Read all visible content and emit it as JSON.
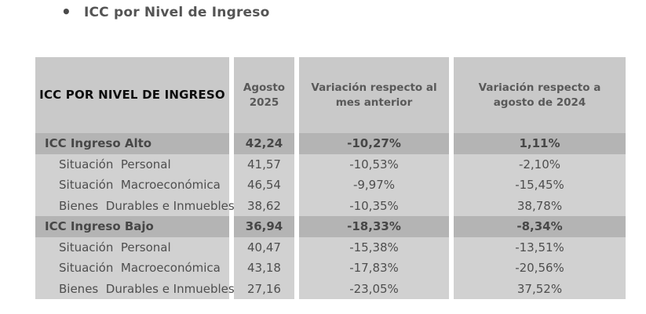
{
  "title": {
    "bullet": "•",
    "text": "ICC por Nivel de Ingreso"
  },
  "table": {
    "headers": [
      {
        "lines": [
          "ICC POR NIVEL DE INGRESO"
        ]
      },
      {
        "lines": [
          "Agosto",
          "2025"
        ]
      },
      {
        "lines": [
          "Variación respecto al",
          "mes anterior"
        ]
      },
      {
        "lines": [
          "Variación respecto a",
          "agosto de 2024"
        ]
      }
    ],
    "rows": [
      {
        "label": "ICC Ingreso Alto",
        "agosto_2025": "42,24",
        "var_mes_anterior": "-10,27%",
        "var_agosto_2024": "1,11%"
      },
      {
        "label": "Situación  Personal",
        "agosto_2025": "41,57",
        "var_mes_anterior": "-10,53%",
        "var_agosto_2024": "-2,10%"
      },
      {
        "label": "Situación  Macroeconómica",
        "agosto_2025": "46,54",
        "var_mes_anterior": "-9,97%",
        "var_agosto_2024": "-15,45%"
      },
      {
        "label": "Bienes  Durables e Inmuebles",
        "agosto_2025": "38,62",
        "var_mes_anterior": "-10,35%",
        "var_agosto_2024": "38,78%"
      },
      {
        "label": "ICC Ingreso Bajo",
        "agosto_2025": "36,94",
        "var_mes_anterior": "-18,33%",
        "var_agosto_2024": "-8,34%"
      },
      {
        "label": "Situación  Personal",
        "agosto_2025": "40,47",
        "var_mes_anterior": "-15,38%",
        "var_agosto_2024": "-13,51%"
      },
      {
        "label": "Situación  Macroeconómica",
        "agosto_2025": "43,18",
        "var_mes_anterior": "-17,83%",
        "var_agosto_2024": "-20,56%"
      },
      {
        "label": "Bienes  Durables e Inmuebles",
        "agosto_2025": "27,16",
        "var_mes_anterior": "-23,05%",
        "var_agosto_2024": "37,52%"
      }
    ],
    "colors": {
      "header_bg": "#c9c9c9",
      "group_row_bg": "#b4b4b4",
      "sub_row_bg": "#d1d1d1",
      "header_category_text": "#0d0d0d",
      "header_secondary_text": "#595959",
      "group_row_text": "#474747",
      "sub_row_text": "#4e4e4e",
      "title_text": "#545454"
    }
  }
}
